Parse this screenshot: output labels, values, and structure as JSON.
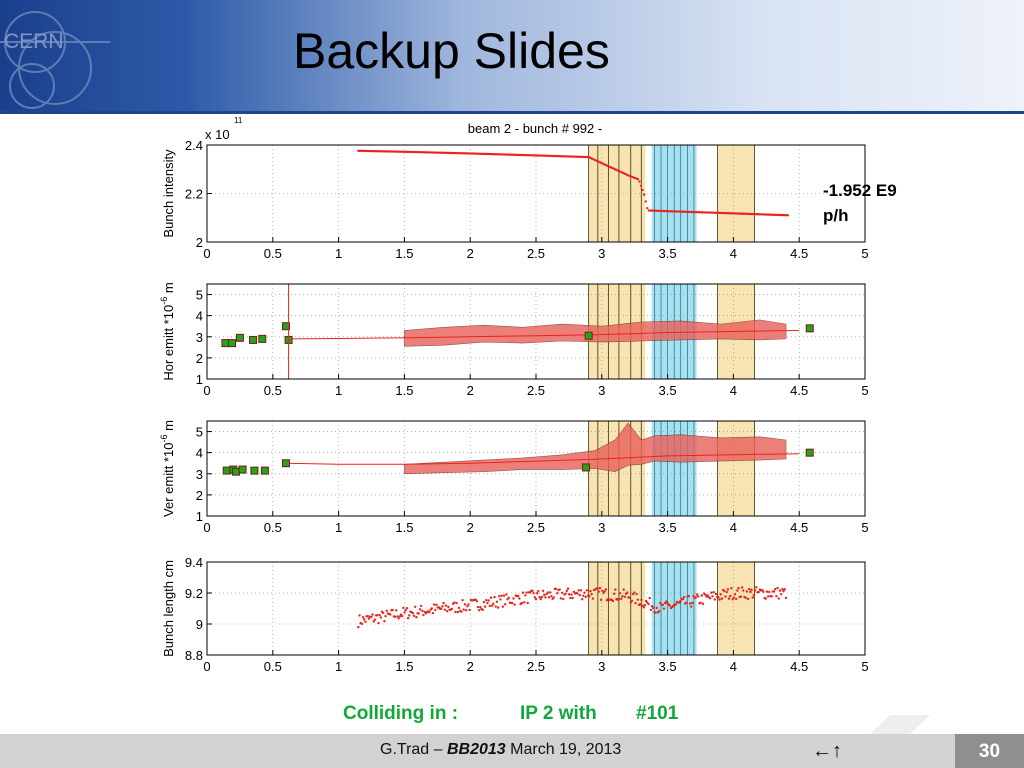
{
  "title": "Backup Slides",
  "annotation": {
    "line1": "-1.952 E9",
    "line2": "p/h"
  },
  "colliding": {
    "label": "Colliding in :",
    "ip": "IP 2 with",
    "count": "#101"
  },
  "footer": {
    "author": "G.Trad – ",
    "event": "BB2013",
    "date": " March 19, 2013",
    "nav": "←↑",
    "page": "30"
  },
  "logo": {
    "text": "CERN"
  },
  "colors": {
    "header_dark": "#1a3f8c",
    "data_red": "#e8241c",
    "band_red": "#e9605a",
    "marker_green": "#21a51f",
    "yellow_band": "#f6dfa4",
    "cyan_band": "#8fd9ee",
    "colliding_green": "#11a83a"
  },
  "chart_data": [
    {
      "type": "scatter",
      "title": "beam 2 - bunch # 992 -",
      "ylabel": "Bunch intensity",
      "exponent_label": "x 10",
      "exponent": "11",
      "xlim": [
        0,
        5
      ],
      "ylim": [
        2,
        2.4
      ],
      "xticks": [
        "0",
        "0.5",
        "1",
        "1.5",
        "2",
        "2.5",
        "3",
        "3.5",
        "4",
        "4.5",
        "5"
      ],
      "yticks": [
        "2",
        "2.2",
        "2.4"
      ],
      "grid": true,
      "series": [
        {
          "x": [
            1.15,
            1.5,
            2.0,
            2.5,
            2.9,
            3.0,
            3.1,
            3.2,
            3.28,
            3.32,
            3.35,
            3.5,
            4.0,
            4.42
          ],
          "y": [
            2.376,
            2.372,
            2.365,
            2.357,
            2.35,
            2.325,
            2.3,
            2.275,
            2.258,
            2.2,
            2.13,
            2.127,
            2.118,
            2.11
          ]
        }
      ]
    },
    {
      "type": "line",
      "ylabel": "Hor emitt  *10",
      "exponent": "-6",
      "unit": "m",
      "xlim": [
        0,
        5
      ],
      "ylim": [
        1,
        5.5
      ],
      "xticks": [
        "0",
        "0.5",
        "1",
        "1.5",
        "2",
        "2.5",
        "3",
        "3.5",
        "4",
        "4.5",
        "5"
      ],
      "yticks": [
        "1",
        "2",
        "3",
        "4",
        "5"
      ],
      "grid": true,
      "series": [
        {
          "x": [
            0.62,
            1.0,
            1.5,
            2.0,
            2.5,
            3.0,
            3.5,
            4.0,
            4.5
          ],
          "y": [
            2.9,
            2.92,
            2.95,
            3.0,
            3.05,
            3.1,
            3.2,
            3.25,
            3.3
          ]
        }
      ],
      "band": {
        "x": [
          1.5,
          1.8,
          2.1,
          2.4,
          2.7,
          3.0,
          3.3,
          3.6,
          3.9,
          4.2,
          4.4
        ],
        "upper": [
          3.3,
          3.45,
          3.55,
          3.45,
          3.6,
          3.5,
          3.7,
          3.75,
          3.6,
          3.8,
          3.6
        ],
        "lower": [
          2.55,
          2.6,
          2.75,
          2.7,
          2.8,
          2.75,
          2.8,
          2.85,
          2.9,
          2.85,
          2.9
        ]
      },
      "markers": {
        "x": [
          0.14,
          0.19,
          0.25,
          0.35,
          0.42,
          0.6,
          0.62,
          2.9,
          4.58
        ],
        "y": [
          2.7,
          2.7,
          2.95,
          2.85,
          2.9,
          3.5,
          2.85,
          3.05,
          3.4
        ]
      }
    },
    {
      "type": "line",
      "ylabel": "Ver emitt  *10",
      "exponent": "-6",
      "unit": "m",
      "xlim": [
        0,
        5
      ],
      "ylim": [
        1,
        5.5
      ],
      "xticks": [
        "0",
        "0.5",
        "1",
        "1.5",
        "2",
        "2.5",
        "3",
        "3.5",
        "4",
        "4.5",
        "5"
      ],
      "yticks": [
        "1",
        "2",
        "3",
        "4",
        "5"
      ],
      "grid": true,
      "series": [
        {
          "x": [
            0.6,
            1.0,
            1.5,
            2.0,
            2.5,
            3.0,
            3.5,
            4.0,
            4.5
          ],
          "y": [
            3.5,
            3.45,
            3.45,
            3.5,
            3.6,
            3.7,
            3.85,
            3.9,
            3.95
          ]
        }
      ],
      "band": {
        "x": [
          1.5,
          1.8,
          2.1,
          2.4,
          2.7,
          2.95,
          3.1,
          3.2,
          3.3,
          3.4,
          3.6,
          3.9,
          4.2,
          4.4
        ],
        "upper": [
          3.45,
          3.55,
          3.65,
          3.75,
          3.9,
          4.1,
          4.6,
          5.4,
          4.6,
          4.8,
          4.85,
          4.7,
          4.75,
          4.6
        ],
        "lower": [
          3.0,
          3.05,
          3.1,
          3.2,
          3.2,
          3.25,
          3.1,
          3.4,
          3.45,
          3.6,
          3.55,
          3.6,
          3.65,
          3.7
        ]
      },
      "markers": {
        "x": [
          0.15,
          0.2,
          0.22,
          0.27,
          0.36,
          0.44,
          0.6,
          2.88,
          4.58
        ],
        "y": [
          3.15,
          3.2,
          3.1,
          3.2,
          3.15,
          3.15,
          3.5,
          3.3,
          4.0
        ]
      }
    },
    {
      "type": "scatter",
      "ylabel": "Bunch length  cm",
      "xlim": [
        0,
        5
      ],
      "ylim": [
        8.8,
        9.4
      ],
      "xticks": [
        "0",
        "0.5",
        "1",
        "1.5",
        "2",
        "2.5",
        "3",
        "3.5",
        "4",
        "4.5",
        "5"
      ],
      "yticks": [
        "8.8",
        "9",
        "9.2",
        "9.4"
      ],
      "grid": true,
      "series": [
        {
          "x": [
            1.15,
            1.5,
            2.0,
            2.5,
            2.9,
            3.2,
            3.45,
            3.7,
            4.0,
            4.4
          ],
          "y": [
            9.02,
            9.07,
            9.12,
            9.18,
            9.2,
            9.18,
            9.1,
            9.15,
            9.2,
            9.2
          ]
        }
      ]
    }
  ],
  "highlight_bands": {
    "yellow": [
      [
        2.9,
        3.33
      ],
      [
        3.88,
        4.16
      ]
    ],
    "cyan": [
      [
        3.38,
        3.72
      ]
    ],
    "band_lines_yellow": [
      2.9,
      2.97,
      3.05,
      3.13,
      3.22,
      3.3,
      3.88,
      4.16
    ],
    "band_lines_cyan": [
      3.4,
      3.45,
      3.5,
      3.55,
      3.6,
      3.65,
      3.7
    ]
  }
}
